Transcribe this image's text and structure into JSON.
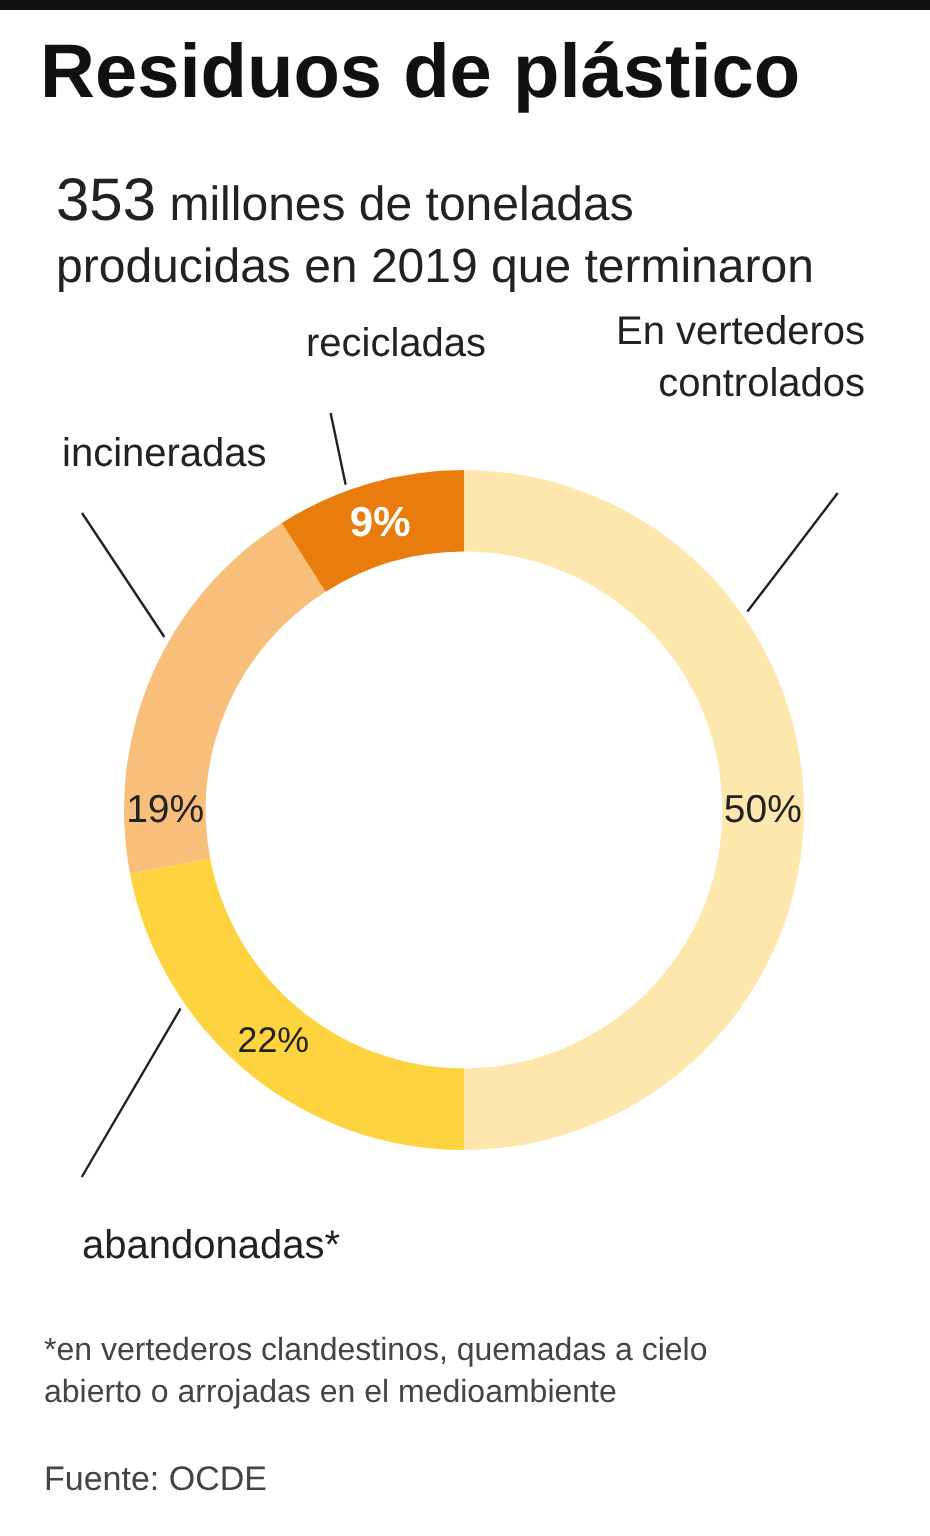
{
  "chart_data": {
    "type": "donut",
    "title": "Residuos de plástico",
    "subtitle": "353 millones de toneladas\nproducidas en 2019 que terminaron",
    "categories": [
      "En vertederos\ncontrolados",
      "abandonadas*",
      "incineradas",
      "recicladas"
    ],
    "values": [
      50,
      22,
      19,
      9
    ],
    "colors": [
      "#fde7ad",
      "#fdd43f",
      "#f8bf7a",
      "#e87c0c"
    ],
    "value_labels": [
      "50%",
      "22%",
      "19%",
      "9%"
    ],
    "legend": false,
    "annotations": [
      "*en vertederos clandestinos, quemadas a cielo\nabierto o arrojadas en el medioambiente",
      "Fuente: OCDE"
    ]
  }
}
